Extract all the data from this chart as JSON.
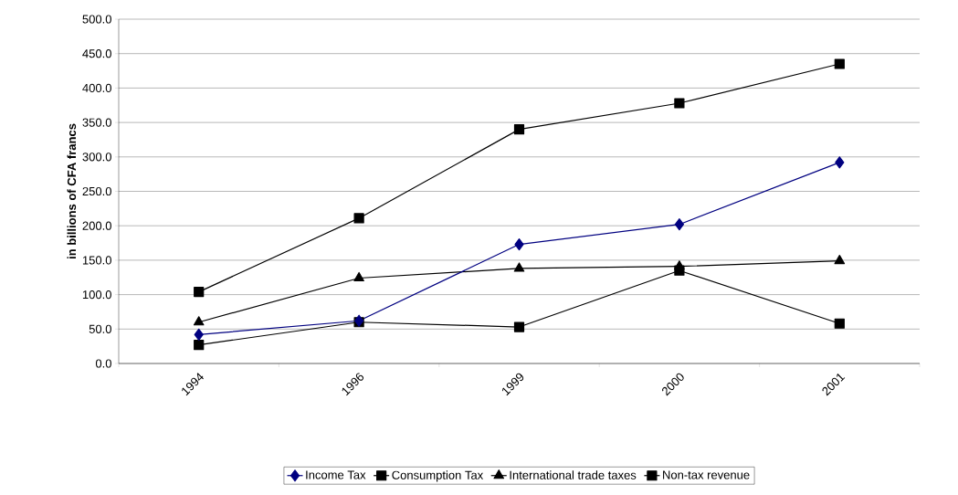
{
  "chart_data": {
    "type": "line",
    "ylabel": "**in billions of CFA francs**",
    "categories": [
      "1994",
      "1996",
      "1999",
      "2000",
      "2001"
    ],
    "series": [
      {
        "name": "Income Tax",
        "color": "#000080",
        "marker": "diamond",
        "values": [
          42,
          62,
          173,
          202,
          292
        ]
      },
      {
        "name": "Consumption Tax",
        "color": "#000000",
        "marker": "square",
        "values": [
          104,
          211,
          340,
          378,
          435
        ]
      },
      {
        "name": "International trade taxes",
        "color": "#000000",
        "marker": "triangle",
        "values": [
          60,
          124,
          138,
          141,
          149
        ]
      },
      {
        "name": "Non-tax revenue",
        "color": "#000000",
        "marker": "square",
        "values": [
          27,
          60,
          53,
          135,
          58
        ]
      }
    ],
    "ylim": [
      0,
      500
    ],
    "yticks": [
      {
        "value": 0,
        "label": "0.0"
      },
      {
        "value": 50,
        "label": "50.0"
      },
      {
        "value": 100,
        "label": "100.0"
      },
      {
        "value": 150,
        "label": "150.0"
      },
      {
        "value": 200,
        "label": "200.0"
      },
      {
        "value": 250,
        "label": "250.0"
      },
      {
        "value": 300,
        "label": "300.0"
      },
      {
        "value": 350,
        "label": "350.0"
      },
      {
        "value": 400,
        "label": "400.0"
      },
      {
        "value": 450,
        "label": "450.0"
      },
      {
        "value": 500,
        "label": "500.0"
      }
    ],
    "grid": "y",
    "legend": "bottom",
    "line_style": "solid"
  }
}
